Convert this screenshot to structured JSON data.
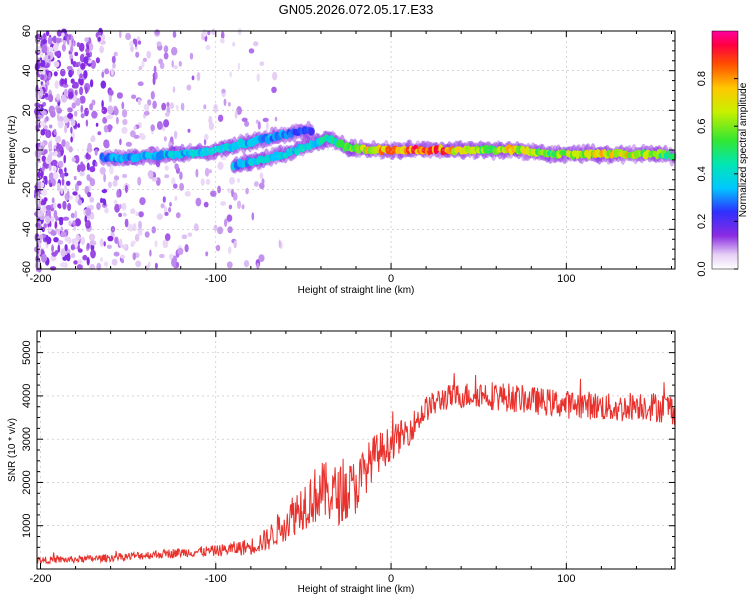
{
  "title": "GN05.2026.072.05.17.E33",
  "chart_data": [
    {
      "type": "heatmap",
      "name": "spectrogram",
      "xlabel": "Height of straight line (km)",
      "ylabel": "Frequency (Hz)",
      "xlim": [
        -202,
        162
      ],
      "ylim": [
        -60,
        60
      ],
      "xticks": [
        -200,
        -100,
        0,
        100
      ],
      "yticks": [
        60,
        40,
        20,
        0,
        -20,
        -40,
        -60
      ],
      "colorbar": {
        "label": "Normalized spectral amplitude",
        "range": [
          0,
          1
        ],
        "ticks": [
          "0.0",
          "0.2",
          "0.4",
          "0.6",
          "0.8"
        ],
        "tick_values": [
          0.0,
          0.2,
          0.4,
          0.6,
          0.8
        ]
      },
      "ridge": [
        {
          "x": -165,
          "y": -4,
          "amp": 0.3
        },
        {
          "x": -150,
          "y": -4,
          "amp": 0.35
        },
        {
          "x": -135,
          "y": -3,
          "amp": 0.35
        },
        {
          "x": -120,
          "y": -2,
          "amp": 0.38
        },
        {
          "x": -105,
          "y": -1,
          "amp": 0.4
        },
        {
          "x": -90,
          "y": 2,
          "amp": 0.4
        },
        {
          "x": -75,
          "y": 5,
          "amp": 0.35
        },
        {
          "x": -60,
          "y": 8,
          "amp": 0.32
        },
        {
          "x": -45,
          "y": 10,
          "amp": 0.25
        }
      ],
      "ridge2": [
        {
          "x": -90,
          "y": -8,
          "amp": 0.35
        },
        {
          "x": -75,
          "y": -5,
          "amp": 0.38
        },
        {
          "x": -60,
          "y": -2,
          "amp": 0.4
        },
        {
          "x": -45,
          "y": 3,
          "amp": 0.42
        },
        {
          "x": -35,
          "y": 6,
          "amp": 0.45
        },
        {
          "x": -25,
          "y": 1,
          "amp": 0.6
        },
        {
          "x": -10,
          "y": 0,
          "amp": 0.75
        },
        {
          "x": 10,
          "y": 0,
          "amp": 0.9
        },
        {
          "x": 30,
          "y": 0,
          "amp": 0.85
        },
        {
          "x": 50,
          "y": 0,
          "amp": 0.6
        },
        {
          "x": 70,
          "y": 0,
          "amp": 0.75
        },
        {
          "x": 90,
          "y": -2,
          "amp": 0.6
        },
        {
          "x": 110,
          "y": -2,
          "amp": 0.7
        },
        {
          "x": 130,
          "y": -2,
          "amp": 0.75
        },
        {
          "x": 150,
          "y": -2,
          "amp": 0.65
        },
        {
          "x": 162,
          "y": -3,
          "amp": 0.5
        }
      ]
    },
    {
      "type": "line",
      "name": "snr",
      "xlabel": "Height of straight line (km)",
      "ylabel": "SNR (10 * v/v)",
      "xlim": [
        -202,
        162
      ],
      "ylim": [
        0,
        5500
      ],
      "xticks": [
        -200,
        -100,
        0,
        100
      ],
      "yticks": [
        1000,
        2000,
        3000,
        4000,
        5000
      ],
      "color": "#e8312c",
      "series": [
        {
          "name": "SNR",
          "x": [
            -202,
            -180,
            -160,
            -140,
            -120,
            -100,
            -80,
            -70,
            -60,
            -50,
            -40,
            -30,
            -20,
            -10,
            0,
            10,
            20,
            30,
            40,
            50,
            60,
            70,
            80,
            90,
            100,
            110,
            120,
            130,
            140,
            150,
            162
          ],
          "y": [
            200,
            220,
            260,
            320,
            380,
            420,
            520,
            700,
            1100,
            1500,
            1800,
            1700,
            1900,
            2600,
            2900,
            3200,
            3700,
            3950,
            4000,
            4050,
            4000,
            3950,
            3900,
            3850,
            3800,
            3800,
            3750,
            3700,
            3800,
            3750,
            3700
          ],
          "noise": [
            80,
            80,
            90,
            100,
            110,
            130,
            200,
            280,
            450,
            600,
            700,
            700,
            650,
            500,
            400,
            350,
            300,
            300,
            300,
            320,
            350,
            330,
            320,
            320,
            330,
            330,
            330,
            340,
            340,
            350,
            380
          ]
        }
      ]
    }
  ]
}
